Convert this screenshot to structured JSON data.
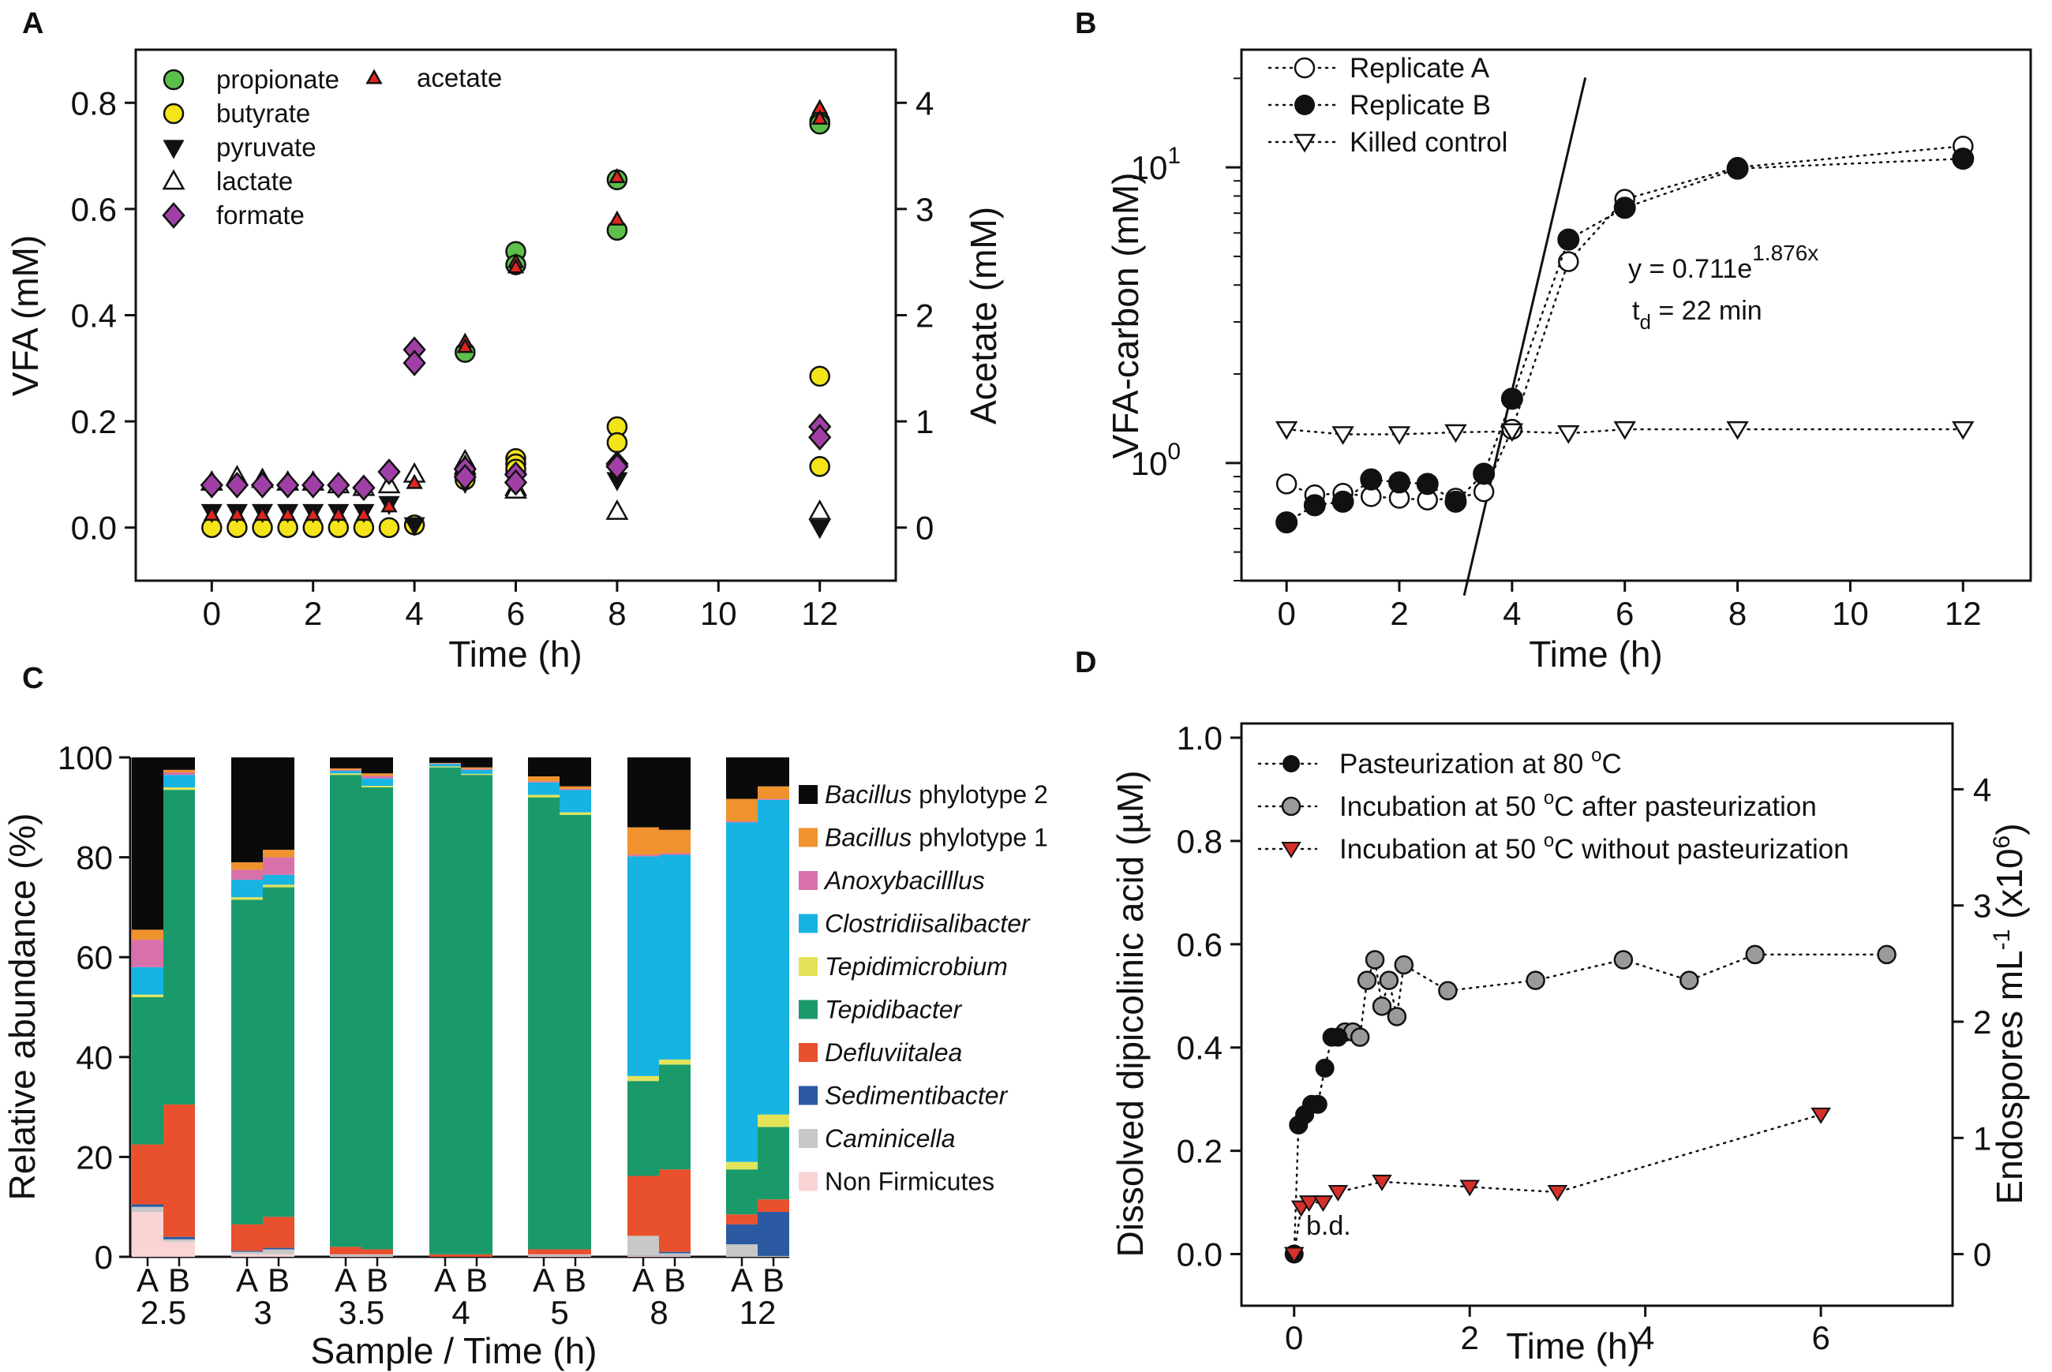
{
  "colors": {
    "propionate": "#5cbf4a",
    "butyrate": "#f4e419",
    "pyruvate": "#111111",
    "lactate": "#ffffff",
    "formate": "#a040a6",
    "acetate": "#e0261f",
    "grey_marker": "#9a9a9a",
    "red_marker": "#d6302a"
  },
  "chart_data": [
    {
      "panel": "A",
      "type": "scatter",
      "xlabel": "Time (h)",
      "ylabel": "VFA (mM)",
      "y2label": "Acetate (mM)",
      "xlim": [
        -1.5,
        13.5
      ],
      "ylim": [
        -0.1,
        0.9
      ],
      "y2lim": [
        -0.5,
        4.5
      ],
      "xticks": [
        "0",
        "2",
        "4",
        "6",
        "8",
        "10",
        "12"
      ],
      "yticks": [
        "0.0",
        "0.2",
        "0.4",
        "0.6",
        "0.8"
      ],
      "y2ticks": [
        "0",
        "1",
        "2",
        "3",
        "4"
      ],
      "series": [
        {
          "name": "propionate",
          "axis": "left",
          "marker": "circle",
          "x": [
            5,
            6,
            6,
            8,
            8,
            12,
            12
          ],
          "y": [
            0.33,
            0.52,
            0.495,
            0.655,
            0.56,
            0.765,
            0.76
          ]
        },
        {
          "name": "butyrate",
          "axis": "left",
          "marker": "circle",
          "x": [
            0,
            0.5,
            1,
            1.5,
            2,
            2.5,
            3,
            3.5,
            4,
            5,
            5,
            6,
            6,
            6,
            8,
            8,
            12,
            12
          ],
          "y": [
            0.0,
            0.0,
            0.0,
            0.0,
            0.0,
            0.0,
            0.0,
            0.0,
            0.005,
            0.09,
            0.1,
            0.13,
            0.12,
            0.11,
            0.19,
            0.16,
            0.285,
            0.115
          ]
        },
        {
          "name": "pyruvate",
          "axis": "left",
          "marker": "triangle-down",
          "x": [
            0,
            0.5,
            1,
            1.5,
            2,
            2.5,
            3,
            3.5,
            4,
            5,
            6,
            8,
            12
          ],
          "y": [
            0.03,
            0.03,
            0.03,
            0.03,
            0.03,
            0.03,
            0.03,
            0.045,
            0.005,
            0.085,
            0.09,
            0.09,
            0.0
          ]
        },
        {
          "name": "lactate",
          "axis": "left",
          "marker": "triangle-up",
          "x": [
            0,
            0.5,
            1,
            1.5,
            2,
            2.5,
            3,
            3.5,
            4,
            5,
            5,
            6,
            6,
            8,
            12
          ],
          "y": [
            0.085,
            0.095,
            0.09,
            0.085,
            0.085,
            0.08,
            0.075,
            0.08,
            0.1,
            0.125,
            0.115,
            0.075,
            0.07,
            0.03,
            0.03
          ]
        },
        {
          "name": "formate",
          "axis": "left",
          "marker": "diamond",
          "x": [
            0,
            0.5,
            1,
            1.5,
            2,
            2.5,
            3,
            3.5,
            4,
            4,
            5,
            5,
            6,
            6,
            8,
            8,
            12,
            12
          ],
          "y": [
            0.08,
            0.08,
            0.08,
            0.08,
            0.08,
            0.08,
            0.075,
            0.105,
            0.335,
            0.31,
            0.11,
            0.095,
            0.1,
            0.085,
            0.12,
            0.115,
            0.19,
            0.17
          ]
        },
        {
          "name": "acetate",
          "axis": "right",
          "marker": "triangle-up",
          "x": [
            0,
            0.5,
            1,
            1.5,
            2,
            2.5,
            3,
            3.5,
            4,
            5,
            5,
            6,
            6,
            8,
            8,
            12,
            12
          ],
          "y": [
            0.12,
            0.12,
            0.12,
            0.12,
            0.12,
            0.12,
            0.12,
            0.2,
            0.42,
            1.75,
            1.7,
            2.5,
            2.45,
            3.3,
            2.9,
            3.95,
            3.85
          ]
        }
      ]
    },
    {
      "panel": "B",
      "type": "line",
      "yscale": "log",
      "xlabel": "Time (h)",
      "ylabel": "VFA-carbon (mM)",
      "xlim": [
        -0.8,
        13.2
      ],
      "ylim": [
        0.4,
        25
      ],
      "xticks": [
        "0",
        "2",
        "4",
        "6",
        "8",
        "10",
        "12"
      ],
      "yticks": [
        {
          "base": "10",
          "exp": "0",
          "value": 1
        },
        {
          "base": "10",
          "exp": "1",
          "value": 10
        }
      ],
      "series": [
        {
          "name": "Replicate A",
          "marker": "circle-open",
          "x": [
            0,
            0.5,
            1,
            1.5,
            2,
            2.5,
            3,
            3.5,
            4,
            5,
            6,
            8,
            12
          ],
          "y": [
            0.85,
            0.78,
            0.79,
            0.77,
            0.76,
            0.75,
            0.76,
            0.8,
            1.3,
            4.8,
            7.8,
            10,
            11.8
          ]
        },
        {
          "name": "Replicate B",
          "marker": "circle-filled",
          "x": [
            0,
            0.5,
            1,
            1.5,
            2,
            2.5,
            3,
            3.5,
            4,
            5,
            6,
            8,
            12
          ],
          "y": [
            0.63,
            0.72,
            0.74,
            0.88,
            0.86,
            0.85,
            0.74,
            0.92,
            1.65,
            5.7,
            7.3,
            9.9,
            10.7
          ]
        },
        {
          "name": "Killed control",
          "marker": "triangle-down-open",
          "x": [
            0,
            1,
            2,
            3,
            4,
            5,
            6,
            8,
            12
          ],
          "y": [
            1.3,
            1.25,
            1.25,
            1.27,
            1.28,
            1.26,
            1.3,
            1.3,
            1.3
          ]
        }
      ],
      "fit": {
        "x": [
          3.15,
          5.3
        ],
        "equation_prefix": "y  = 0.711e",
        "equation_exp": "1.876x",
        "td_prefix": "t",
        "td_sub": "d",
        "td_suffix": " = 22 min"
      }
    },
    {
      "panel": "C",
      "type": "bar",
      "stacked": true,
      "xlabel": "Sample / Time (h)",
      "ylabel": "Relative abundance (%)",
      "ylim": [
        0,
        100
      ],
      "yticks": [
        "0",
        "20",
        "40",
        "60",
        "80",
        "100"
      ],
      "groups": [
        "2.5",
        "3",
        "3.5",
        "4",
        "5",
        "8",
        "12"
      ],
      "replicates": [
        "A",
        "B"
      ],
      "taxa": [
        {
          "name": "Non Firmicutes",
          "italic": false,
          "color": "#fad4d4"
        },
        {
          "name": "Caminicella",
          "italic": true,
          "color": "#c8c8c8"
        },
        {
          "name": "Sedimentibacter",
          "italic": true,
          "color": "#2b5aa2"
        },
        {
          "name": "Defluviitalea",
          "italic": true,
          "color": "#e8502e"
        },
        {
          "name": "Tepidibacter",
          "italic": true,
          "color": "#1a9a6a"
        },
        {
          "name": "Tepidimicrobium",
          "italic": true,
          "color": "#e3e35a"
        },
        {
          "name": "Clostridiisalibacter",
          "italic": true,
          "color": "#17b3e2"
        },
        {
          "name": "Anoxybacilllus",
          "italic": true,
          "color": "#d870aa"
        },
        {
          "name": "Bacillus",
          "suffix": " phylotype 1",
          "italic": true,
          "color": "#f0922e"
        },
        {
          "name": "Bacillus",
          "suffix": " phylotype 2",
          "italic": true,
          "color": "#0a0a0a"
        }
      ],
      "values": {
        "2.5A": [
          9,
          1,
          0.5,
          12,
          29.5,
          0.5,
          5.5,
          5.5,
          2,
          34.5
        ],
        "2.5B": [
          3,
          0.5,
          0.5,
          26.5,
          63,
          0.5,
          2.5,
          0.5,
          0.5,
          2.5
        ],
        "3A": [
          0.5,
          0.5,
          0.2,
          5.3,
          65,
          0.5,
          3.5,
          2,
          1.5,
          21
        ],
        "3B": [
          0.5,
          1,
          0.3,
          6.2,
          66,
          0.5,
          2,
          3.5,
          1.5,
          18.5
        ],
        "3.5A": [
          0.2,
          0.3,
          0,
          1.5,
          94.5,
          0.3,
          0.5,
          0.2,
          0.3,
          2.2
        ],
        "3.5B": [
          0.2,
          0.3,
          0,
          1,
          92.5,
          0.3,
          1.5,
          0.5,
          0.5,
          3.2
        ],
        "4A": [
          0,
          0,
          0,
          0.5,
          97.5,
          0.2,
          0.5,
          0.1,
          0.1,
          1.1
        ],
        "4B": [
          0,
          0,
          0,
          0.5,
          96,
          0.2,
          0.8,
          0.2,
          0.3,
          2
        ],
        "5A": [
          0.2,
          0.3,
          0,
          1,
          90.5,
          0.5,
          2.5,
          0.2,
          1,
          3.8
        ],
        "5B": [
          0.2,
          0.3,
          0,
          1,
          87,
          0.5,
          4.5,
          0.2,
          0.5,
          5.8
        ],
        "8A": [
          0.2,
          4,
          0,
          12,
          19,
          1,
          44,
          0.3,
          5.5,
          14
        ],
        "8B": [
          0.2,
          0.5,
          0.3,
          16.5,
          21,
          1,
          41,
          0.3,
          4.7,
          14.5
        ],
        "12A": [
          0,
          2.5,
          4,
          2,
          9,
          1.5,
          68,
          0.2,
          4.5,
          8.3
        ],
        "12B": [
          0,
          0.2,
          8.8,
          2.5,
          14.5,
          2.5,
          63,
          0.2,
          2.5,
          5.8
        ]
      }
    },
    {
      "panel": "D",
      "type": "scatter",
      "xlabel": "Time (h)",
      "ylabel": "Dissolved dipicolinic acid (µM)",
      "y2label_prefix": "Endospores mL",
      "y2label_exp1": "-1",
      "y2label_mid": " (x10",
      "y2label_exp2": "6",
      "y2label_suffix": ")",
      "xlim": [
        -0.6,
        7.5
      ],
      "ylim": [
        -0.1,
        1.0
      ],
      "y2lim": [
        -0.444,
        4.444
      ],
      "xticks": [
        "0",
        "2",
        "4",
        "6"
      ],
      "yticks": [
        "0.0",
        "0.2",
        "0.4",
        "0.6",
        "0.8",
        "1.0"
      ],
      "y2ticks": [
        "0",
        "1",
        "2",
        "3",
        "4"
      ],
      "series": [
        {
          "name": "Pasteurization at 80 °C",
          "label_prefix": "Pasteurization at 80 ",
          "label_deg": "o",
          "label_unit": "C",
          "marker": "circle-black",
          "x": [
            0,
            0.05,
            0.12,
            0.2,
            0.27,
            0.35,
            0.43,
            0.5
          ],
          "y": [
            0,
            0.25,
            0.27,
            0.29,
            0.29,
            0.36,
            0.42,
            0.42
          ]
        },
        {
          "name": "Incubation at 50 °C after pasteurization",
          "label_prefix": "Incubation at 50 ",
          "label_deg": "o",
          "label_unit": "C after pasteurization",
          "marker": "circle-grey",
          "x": [
            0.58,
            0.67,
            0.75,
            0.83,
            0.92,
            1.0,
            1.08,
            1.17,
            1.25,
            1.75,
            2.75,
            3.75,
            4.5,
            5.25,
            6.75
          ],
          "y": [
            0.43,
            0.43,
            0.42,
            0.53,
            0.57,
            0.48,
            0.53,
            0.46,
            0.56,
            0.51,
            0.53,
            0.57,
            0.53,
            0.58,
            0.58
          ]
        },
        {
          "name": "Incubation at 50 °C without pasteurization",
          "label_prefix": "Incubation at 50 ",
          "label_deg": "o",
          "label_unit": "C without pasteurization",
          "marker": "triangle-down-red",
          "x": [
            0,
            0.08,
            0.17,
            0.33,
            0.5,
            1.0,
            2.0,
            3.0,
            6.0
          ],
          "y": [
            0,
            0.09,
            0.1,
            0.1,
            0.12,
            0.14,
            0.13,
            0.12,
            0.27
          ]
        }
      ],
      "annotation": "b.d."
    }
  ],
  "panels": {
    "a": "A",
    "b": "B",
    "c": "C",
    "d": "D"
  }
}
